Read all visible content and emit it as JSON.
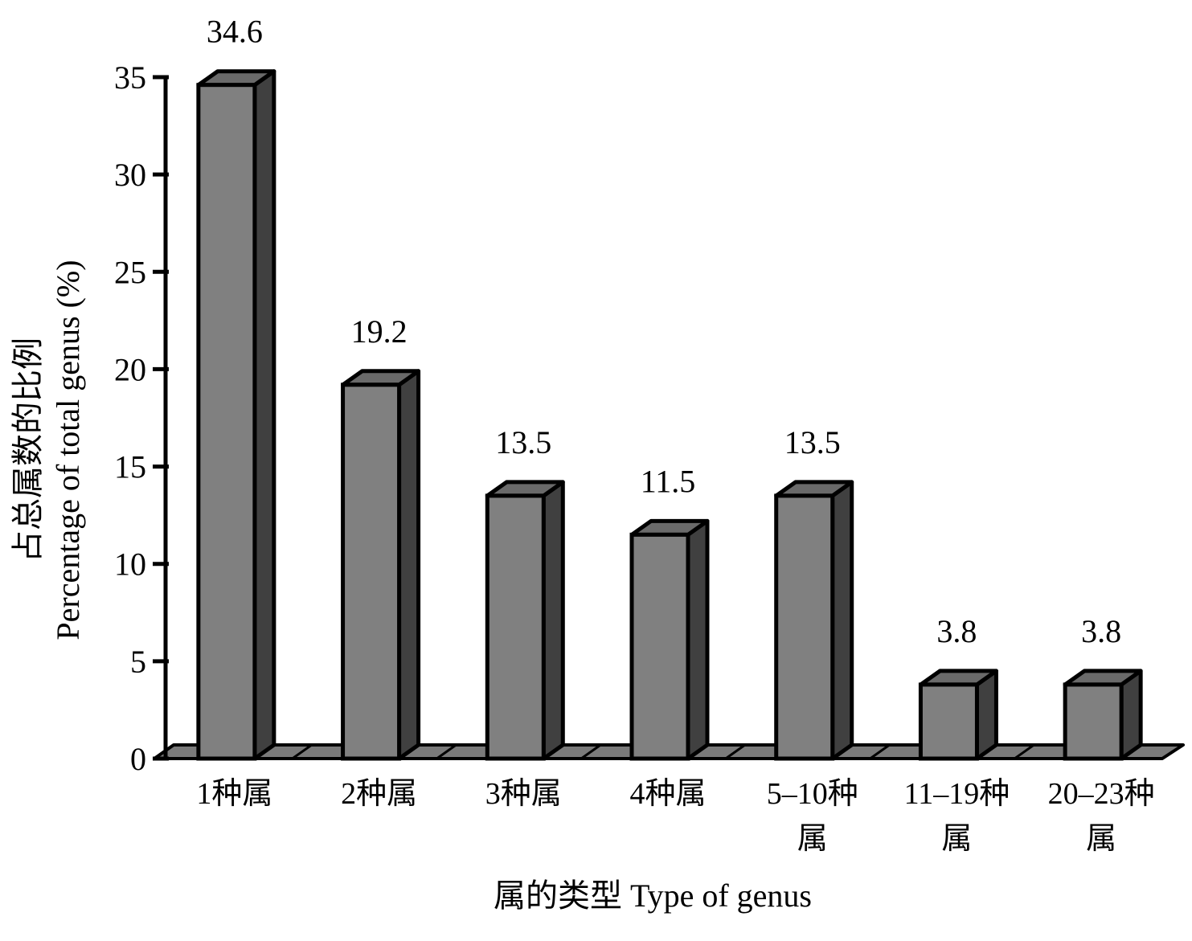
{
  "chart_data": {
    "type": "bar",
    "style": "3d",
    "categories": [
      [
        "1种属"
      ],
      [
        "2种属"
      ],
      [
        "3种属"
      ],
      [
        "4种属"
      ],
      [
        "5–10种",
        "属"
      ],
      [
        "11–19种",
        "属"
      ],
      [
        "20–23种",
        "属"
      ]
    ],
    "values": [
      34.6,
      19.2,
      13.5,
      11.5,
      13.5,
      3.8,
      3.8
    ],
    "data_labels": [
      "34.6",
      "19.2",
      "13.5",
      "11.5",
      "13.5",
      "3.8",
      "3.8"
    ],
    "xlabel": "属的类型 Type of genus",
    "ylabel_lines": [
      "占总属数的比例",
      "Percentage of total genus (%)"
    ],
    "ylim": [
      0,
      35
    ],
    "yticks": [
      0,
      5,
      10,
      15,
      20,
      25,
      30,
      35
    ],
    "grid": false,
    "legend": "none",
    "colors": {
      "bar_front": "#808080",
      "bar_top": "#6a6a6a",
      "bar_side": "#404040",
      "floor": "#7a7a7a",
      "outline": "#000000"
    }
  }
}
